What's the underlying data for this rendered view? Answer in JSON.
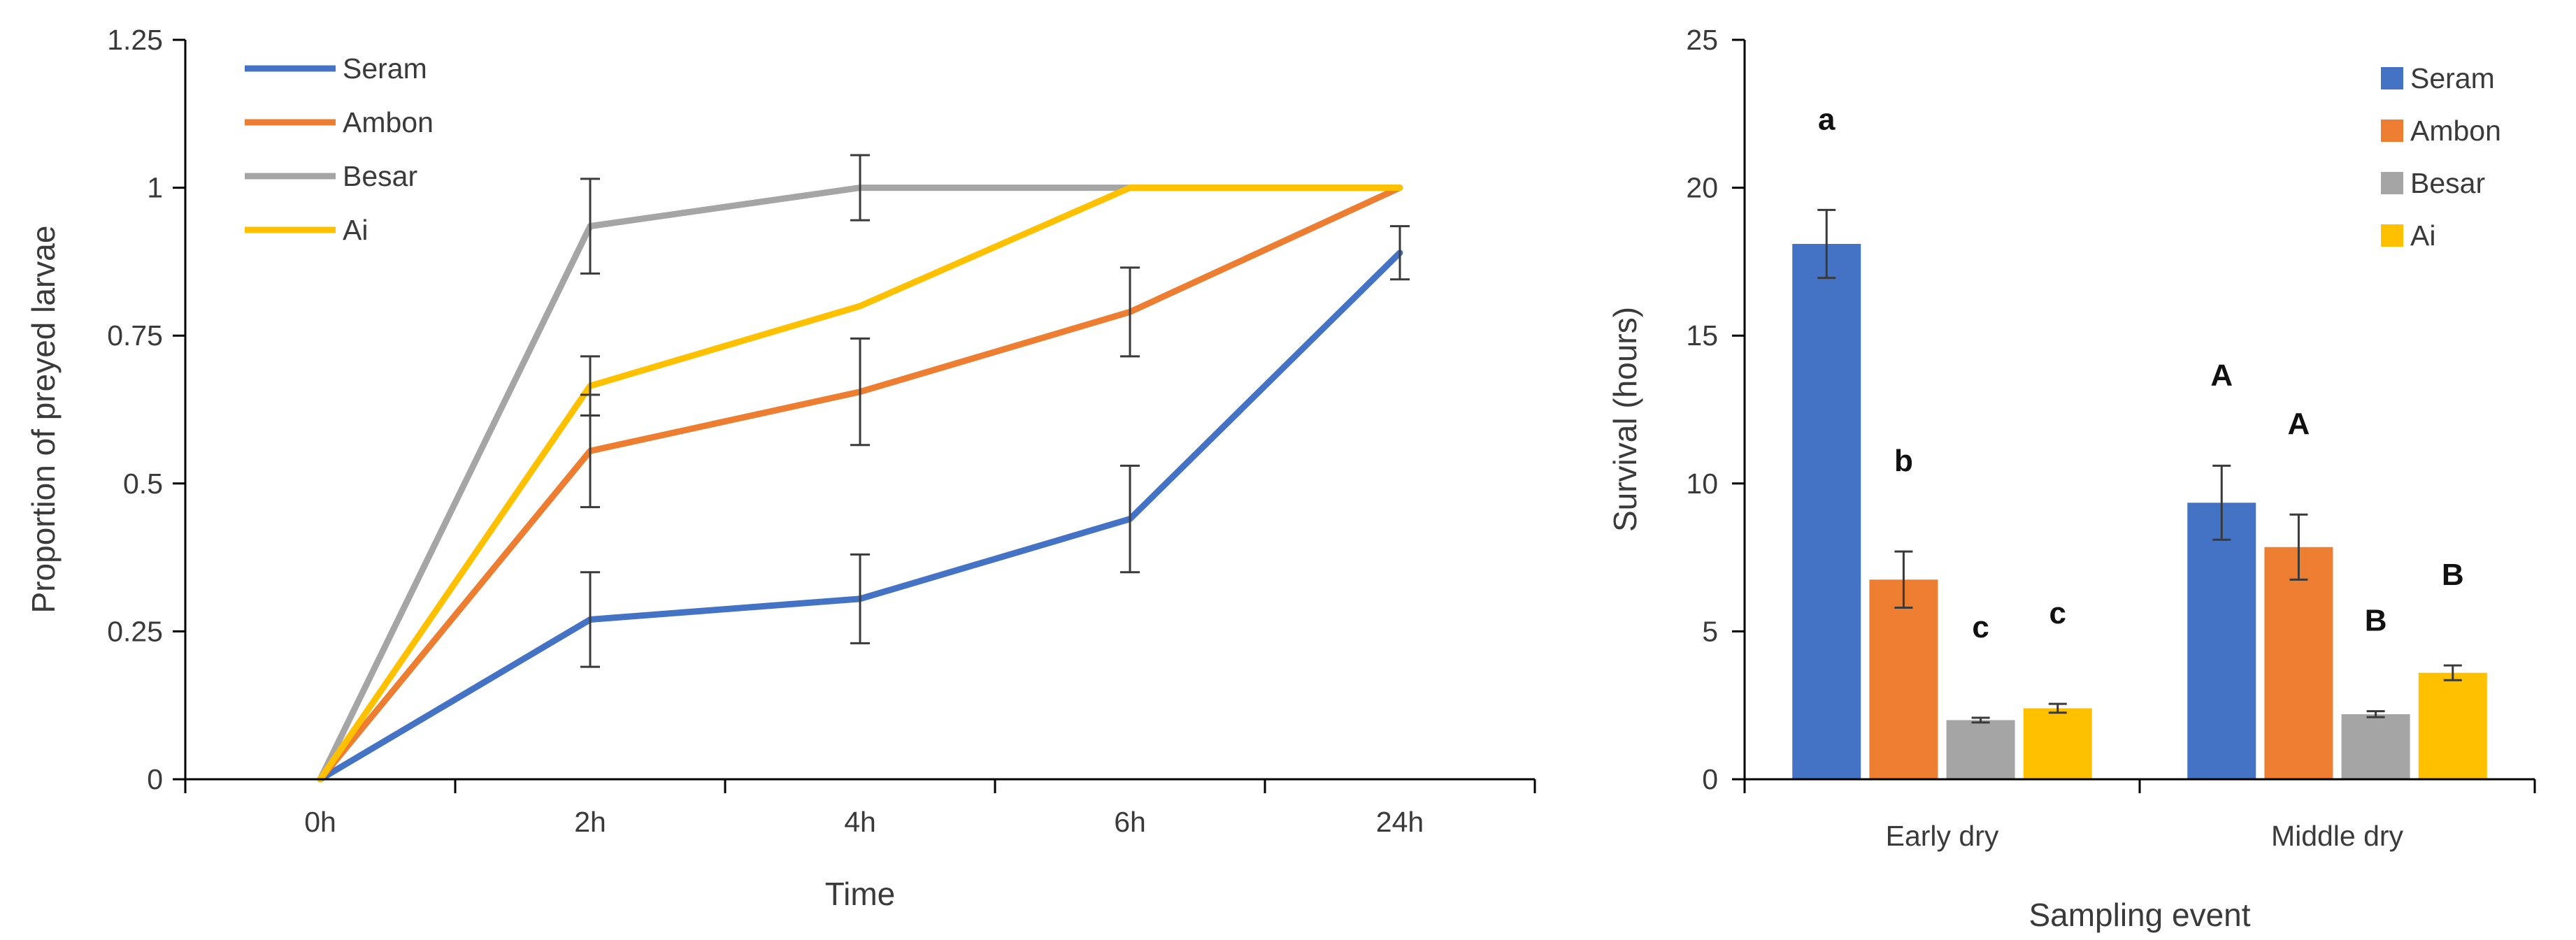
{
  "chart_data": [
    {
      "type": "line",
      "xlabel": "Time",
      "ylabel": "Proportion of preyed larvae",
      "categories": [
        "0h",
        "2h",
        "4h",
        "6h",
        "24h"
      ],
      "ylim": [
        0,
        1.25
      ],
      "yticks": [
        "0",
        "0.25",
        "0.5",
        "0.75",
        "1",
        "1.25"
      ],
      "ytick_values": [
        0,
        0.25,
        0.5,
        0.75,
        1,
        1.25
      ],
      "legend_position": "top-left",
      "series": [
        {
          "name": "Seram",
          "color": "#4472C4",
          "values": [
            0,
            0.27,
            0.305,
            0.44,
            0.89
          ],
          "errors": [
            null,
            0.08,
            0.075,
            0.09,
            0.045
          ]
        },
        {
          "name": "Ambon",
          "color": "#ED7D31",
          "values": [
            0,
            0.555,
            0.655,
            0.79,
            1.0
          ],
          "errors": [
            null,
            0.095,
            0.09,
            0.075,
            null
          ]
        },
        {
          "name": "Besar",
          "color": "#A5A5A5",
          "values": [
            0,
            0.935,
            1.0,
            1.0,
            1.0
          ],
          "errors": [
            null,
            0.08,
            0.055,
            null,
            null
          ]
        },
        {
          "name": "Ai",
          "color": "#FFC000",
          "values": [
            0,
            0.665,
            0.8,
            1.0,
            1.0
          ],
          "errors": [
            null,
            0.05,
            null,
            null,
            null
          ]
        }
      ]
    },
    {
      "type": "bar",
      "xlabel": "Sampling event",
      "ylabel": "Survival (hours)",
      "categories": [
        "Early dry",
        "Middle dry"
      ],
      "ylim": [
        0,
        25
      ],
      "yticks": [
        "0",
        "5",
        "10",
        "15",
        "20",
        "25"
      ],
      "ytick_values": [
        0,
        5,
        10,
        15,
        20,
        25
      ],
      "legend_position": "top-right",
      "series": [
        {
          "name": "Seram",
          "color": "#4472C4",
          "values": [
            18.1,
            9.35
          ],
          "errors": [
            1.15,
            1.25
          ],
          "letters": [
            "a",
            "A"
          ]
        },
        {
          "name": "Ambon",
          "color": "#ED7D31",
          "values": [
            6.75,
            7.85
          ],
          "errors": [
            0.95,
            1.1
          ],
          "letters": [
            "b",
            "A"
          ]
        },
        {
          "name": "Besar",
          "color": "#A5A5A5",
          "values": [
            2.0,
            2.2
          ],
          "errors": [
            0.08,
            0.1
          ],
          "letters": [
            "c",
            "B"
          ]
        },
        {
          "name": "Ai",
          "color": "#FFC000",
          "values": [
            2.4,
            3.6
          ],
          "errors": [
            0.15,
            0.25
          ],
          "letters": [
            "c",
            "B"
          ]
        }
      ]
    }
  ]
}
